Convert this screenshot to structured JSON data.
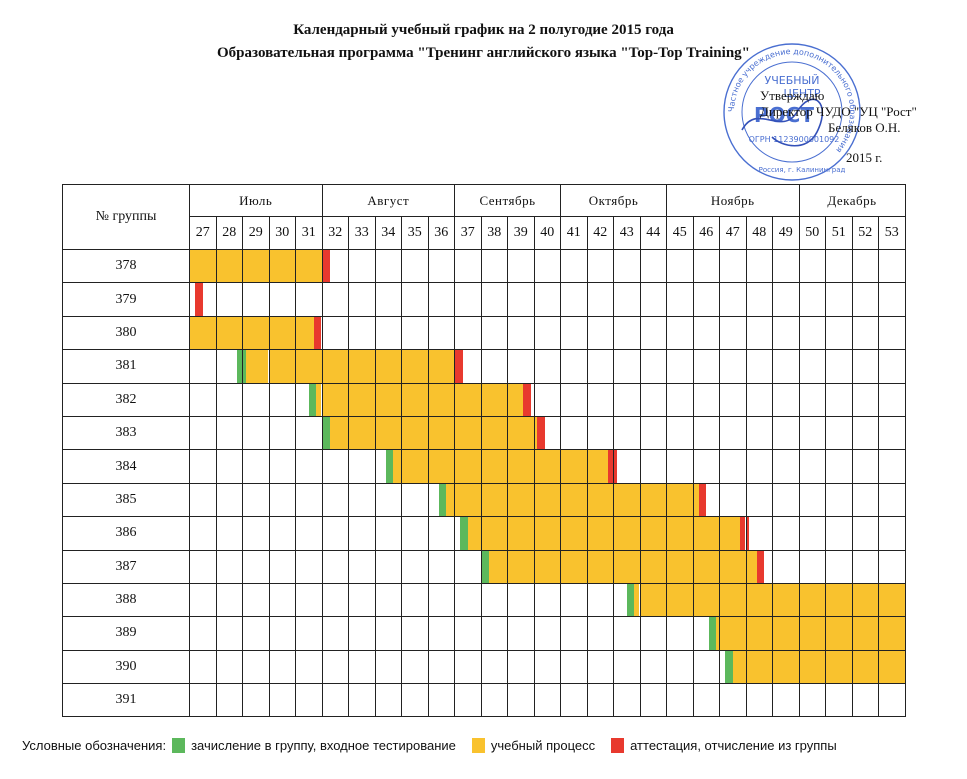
{
  "header": {
    "title": "Календарный учебный график на 2 полугодие 2015 года",
    "subtitle": "Образовательная программа \"Тренинг английского языка \"Top-Top Training\""
  },
  "approval": {
    "line1": "Утверждаю",
    "line2": "Директор ЧУДО \"УЦ \"Рост\"",
    "line3": "Беляков О.Н.",
    "line4": "2015 г."
  },
  "stamp": {
    "ring_text": "Частное учреждение дополнительного образования",
    "center_top": "УЧЕБНЫЙ",
    "center_mid": "ЦЕНТР",
    "center_logo": "РОСТ",
    "ogrn": "ОГРН 1123900001092",
    "bottom": "Россия, г. Калининград"
  },
  "table": {
    "group_header": "№ группы",
    "months": [
      {
        "label": "Июль",
        "span": 5
      },
      {
        "label": "Август",
        "span": 5
      },
      {
        "label": "Сентябрь",
        "span": 4
      },
      {
        "label": "Октябрь",
        "span": 4
      },
      {
        "label": "Ноябрь",
        "span": 5
      },
      {
        "label": "Декабрь",
        "span": 4
      }
    ],
    "weeks": [
      "27",
      "28",
      "29",
      "30",
      "31",
      "32",
      "33",
      "34",
      "35",
      "36",
      "37",
      "38",
      "39",
      "40",
      "41",
      "42",
      "43",
      "44",
      "45",
      "46",
      "47",
      "48",
      "49",
      "50",
      "51",
      "52",
      "53"
    ],
    "groups": [
      {
        "name": "378",
        "segments": [
          {
            "type": "study",
            "from": 0,
            "to": 5
          },
          {
            "type": "exam",
            "from": 5,
            "to": 5.3
          }
        ]
      },
      {
        "name": "379",
        "segments": [
          {
            "type": "exam",
            "from": 0.2,
            "to": 0.5
          }
        ]
      },
      {
        "name": "380",
        "segments": [
          {
            "type": "study",
            "from": 0,
            "to": 4.7
          },
          {
            "type": "exam",
            "from": 4.7,
            "to": 5
          }
        ]
      },
      {
        "name": "381",
        "segments": [
          {
            "type": "enroll",
            "from": 1.8,
            "to": 2.1
          },
          {
            "type": "study",
            "from": 2.1,
            "to": 10
          },
          {
            "type": "exam",
            "from": 10,
            "to": 10.3
          }
        ]
      },
      {
        "name": "382",
        "segments": [
          {
            "type": "enroll",
            "from": 4.5,
            "to": 4.8
          },
          {
            "type": "study",
            "from": 4.8,
            "to": 12.6
          },
          {
            "type": "exam",
            "from": 12.6,
            "to": 12.9
          }
        ]
      },
      {
        "name": "383",
        "segments": [
          {
            "type": "enroll",
            "from": 5,
            "to": 5.3
          },
          {
            "type": "study",
            "from": 5.3,
            "to": 13.1
          },
          {
            "type": "exam",
            "from": 13.1,
            "to": 13.4
          }
        ]
      },
      {
        "name": "384",
        "segments": [
          {
            "type": "enroll",
            "from": 7.4,
            "to": 7.7
          },
          {
            "type": "study",
            "from": 7.7,
            "to": 15.8
          },
          {
            "type": "exam",
            "from": 15.8,
            "to": 16.1
          }
        ]
      },
      {
        "name": "385",
        "segments": [
          {
            "type": "enroll",
            "from": 9.4,
            "to": 9.7
          },
          {
            "type": "study",
            "from": 9.7,
            "to": 19.2
          },
          {
            "type": "exam",
            "from": 19.2,
            "to": 19.5
          }
        ]
      },
      {
        "name": "386",
        "segments": [
          {
            "type": "enroll",
            "from": 10.2,
            "to": 10.5
          },
          {
            "type": "study",
            "from": 10.5,
            "to": 20.8
          },
          {
            "type": "exam",
            "from": 20.8,
            "to": 21.1
          }
        ]
      },
      {
        "name": "387",
        "segments": [
          {
            "type": "enroll",
            "from": 11,
            "to": 11.3
          },
          {
            "type": "study",
            "from": 11.3,
            "to": 21.4
          },
          {
            "type": "exam",
            "from": 21.4,
            "to": 21.7
          }
        ]
      },
      {
        "name": "388",
        "segments": [
          {
            "type": "enroll",
            "from": 16.5,
            "to": 16.8
          },
          {
            "type": "study",
            "from": 16.8,
            "to": 27
          }
        ]
      },
      {
        "name": "389",
        "segments": [
          {
            "type": "enroll",
            "from": 19.6,
            "to": 19.9
          },
          {
            "type": "study",
            "from": 19.9,
            "to": 27
          }
        ]
      },
      {
        "name": "390",
        "segments": [
          {
            "type": "enroll",
            "from": 20.2,
            "to": 20.5
          },
          {
            "type": "study",
            "from": 20.5,
            "to": 27
          }
        ]
      },
      {
        "name": "391",
        "segments": []
      }
    ]
  },
  "colors": {
    "study": "#f9c22e",
    "enroll": "#5cb85c",
    "exam": "#e8392e"
  },
  "legend": {
    "prefix": "Условные обозначения:",
    "enroll": "зачисление в группу, входное тестирование",
    "study": "учебный процесс",
    "exam": "аттестация, отчисление из группы"
  }
}
